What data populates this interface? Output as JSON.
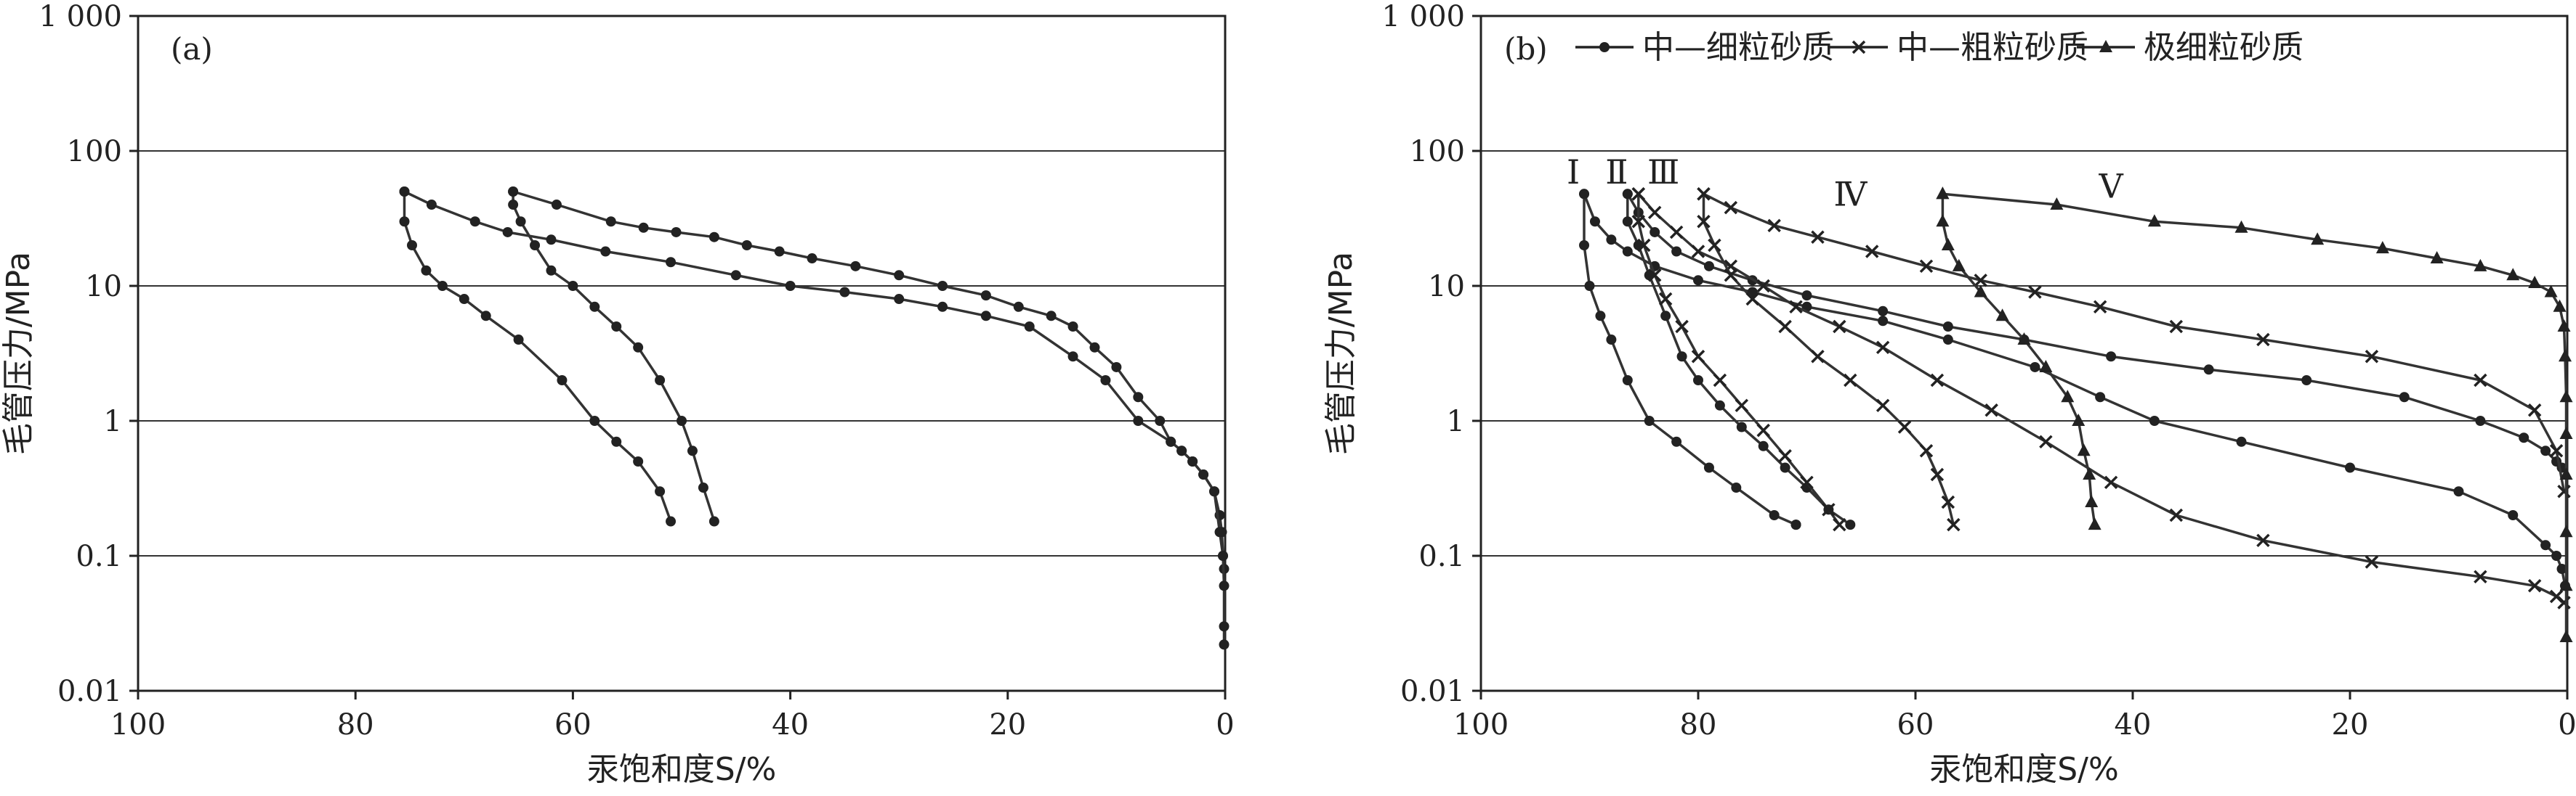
{
  "chart_data": [
    {
      "type": "line",
      "panel_label": "(a)",
      "xlabel": "汞饱和度S/%",
      "ylabel": "毛管压力/MPa",
      "xlim": [
        100,
        0
      ],
      "ylim": [
        0.01,
        1000
      ],
      "yscale": "log",
      "x_ticks": [
        "100",
        "80",
        "60",
        "40",
        "20",
        "0"
      ],
      "y_ticks": [
        "0.01",
        "0.1",
        "1",
        "10",
        "100",
        "1 000"
      ],
      "grid": "horizontal",
      "series": [
        {
          "marker": "circle",
          "x": [
            75.5,
            73,
            69,
            66,
            62,
            57,
            51,
            45,
            40,
            35,
            30,
            26,
            22,
            18,
            14,
            11,
            8,
            5,
            4,
            3,
            2,
            1,
            0.5,
            0.3,
            0.2,
            0.1
          ],
          "y": [
            50,
            40,
            30,
            25,
            22,
            18,
            15,
            12,
            10,
            9,
            8,
            7,
            6,
            5,
            3,
            2,
            1,
            0.7,
            0.6,
            0.5,
            0.4,
            0.3,
            0.2,
            0.15,
            0.1,
            0.08
          ]
        },
        {
          "marker": "circle",
          "x": [
            75.5,
            75.5,
            74.8,
            73.5,
            72,
            70,
            68,
            65,
            61,
            58,
            56,
            54,
            52,
            51
          ],
          "y": [
            50,
            30,
            20,
            13,
            10,
            8,
            6,
            4,
            2,
            1,
            0.7,
            0.5,
            0.3,
            0.18
          ]
        },
        {
          "marker": "circle",
          "x": [
            65.5,
            61.5,
            56.5,
            53.5,
            50.5,
            47,
            44,
            41,
            38,
            34,
            30,
            26,
            22,
            19,
            16,
            14,
            12,
            10,
            8,
            6,
            5,
            4,
            3,
            2,
            1,
            0.5,
            0.2,
            0.1,
            0.1,
            0.1
          ],
          "y": [
            50,
            40,
            30,
            27,
            25,
            23,
            20,
            18,
            16,
            14,
            12,
            10,
            8.5,
            7,
            6,
            5,
            3.5,
            2.5,
            1.5,
            1,
            0.7,
            0.6,
            0.5,
            0.4,
            0.3,
            0.15,
            0.1,
            0.06,
            0.03,
            0.022
          ]
        },
        {
          "marker": "circle",
          "x": [
            65.5,
            65.5,
            64.8,
            63.5,
            62,
            60,
            58,
            56,
            54,
            52,
            50,
            49,
            48,
            47
          ],
          "y": [
            50,
            40,
            30,
            20,
            13,
            10,
            7,
            5,
            3.5,
            2,
            1,
            0.6,
            0.32,
            0.18
          ]
        }
      ]
    },
    {
      "type": "line",
      "panel_label": "(b)",
      "xlabel": "汞饱和度S/%",
      "ylabel": "毛管压力/MPa",
      "xlim": [
        100,
        0
      ],
      "ylim": [
        0.01,
        1000
      ],
      "yscale": "log",
      "x_ticks": [
        "100",
        "80",
        "60",
        "40",
        "20",
        "0"
      ],
      "y_ticks": [
        "0.01",
        "0.1",
        "1",
        "10",
        "100",
        "1 000"
      ],
      "grid": "horizontal",
      "legend": [
        {
          "label": "中—细粒砂质",
          "marker": "circle"
        },
        {
          "label": "中—粗粒砂质",
          "marker": "x"
        },
        {
          "label": "极细粒砂质",
          "marker": "triangle"
        }
      ],
      "annotations": [
        "Ⅰ",
        "Ⅱ",
        "Ⅲ",
        "Ⅳ",
        "Ⅴ"
      ],
      "series": [
        {
          "legend_index": 0,
          "marker": "circle",
          "x": [
            90.5,
            90.5,
            90,
            89,
            88,
            86.5,
            84.5,
            82,
            79,
            76.5,
            73,
            71,
            71
          ],
          "y": [
            48,
            20,
            10,
            6,
            4,
            2,
            1,
            0.7,
            0.45,
            0.32,
            0.2,
            0.17,
            0.17
          ]
        },
        {
          "legend_index": 0,
          "marker": "circle",
          "x": [
            90.5,
            89.5,
            88,
            86.5,
            84,
            80,
            75,
            70,
            63,
            57,
            49,
            43,
            38,
            30,
            20,
            10,
            5,
            2,
            1,
            0.5,
            0.2
          ],
          "y": [
            48,
            30,
            22,
            18,
            14,
            11,
            9,
            7,
            5.5,
            4,
            2.5,
            1.5,
            1,
            0.7,
            0.45,
            0.3,
            0.2,
            0.12,
            0.1,
            0.08,
            0.06
          ]
        },
        {
          "legend_index": 0,
          "marker": "circle",
          "x": [
            86.5,
            86.5,
            85.5,
            84.5,
            83,
            81.5,
            80,
            78,
            76,
            74,
            72,
            70,
            68,
            66
          ],
          "y": [
            48,
            30,
            20,
            12,
            6,
            3,
            2,
            1.3,
            0.9,
            0.65,
            0.45,
            0.32,
            0.22,
            0.17
          ]
        },
        {
          "legend_index": 0,
          "marker": "circle",
          "x": [
            86.5,
            85.5,
            84,
            82,
            79,
            75,
            70,
            63,
            57,
            50,
            42,
            33,
            24,
            15,
            8,
            4,
            2,
            1,
            0.5
          ],
          "y": [
            48,
            35,
            25,
            18,
            14,
            11,
            8.5,
            6.5,
            5,
            4,
            3,
            2.4,
            2,
            1.5,
            1,
            0.75,
            0.6,
            0.5,
            0.45
          ]
        },
        {
          "legend_index": 1,
          "marker": "x",
          "x": [
            85.5,
            85.5,
            85,
            84,
            83,
            81.5,
            80,
            78,
            76,
            74,
            72,
            70,
            68,
            67
          ],
          "y": [
            48,
            30,
            20,
            12,
            8,
            5,
            3,
            2,
            1.3,
            0.85,
            0.55,
            0.35,
            0.22,
            0.17
          ]
        },
        {
          "legend_index": 1,
          "marker": "x",
          "x": [
            85.5,
            84,
            82,
            80,
            77,
            74,
            71,
            67,
            63,
            58,
            53,
            48,
            42,
            36,
            28,
            18,
            8,
            3,
            1,
            0.3
          ],
          "y": [
            48,
            35,
            25,
            18,
            14,
            10,
            7,
            5,
            3.5,
            2,
            1.2,
            0.7,
            0.35,
            0.2,
            0.13,
            0.09,
            0.07,
            0.06,
            0.05,
            0.045
          ]
        },
        {
          "legend_index": 1,
          "marker": "x",
          "x": [
            79.5,
            79.5,
            78.5,
            77,
            75,
            72,
            69,
            66,
            63,
            61,
            59,
            58,
            57,
            56.5
          ],
          "y": [
            48,
            30,
            20,
            12,
            8,
            5,
            3,
            2,
            1.3,
            0.9,
            0.6,
            0.4,
            0.25,
            0.17
          ]
        },
        {
          "legend_index": 1,
          "marker": "x",
          "x": [
            79.5,
            77,
            73,
            69,
            64,
            59,
            54,
            49,
            43,
            36,
            28,
            18,
            8,
            3,
            1,
            0.3
          ],
          "y": [
            48,
            38,
            28,
            23,
            18,
            14,
            11,
            9,
            7,
            5,
            4,
            3,
            2,
            1.2,
            0.6,
            0.3
          ]
        },
        {
          "legend_index": 2,
          "marker": "triangle",
          "x": [
            57.5,
            57.5,
            57,
            56,
            54,
            52,
            50,
            48,
            46,
            45,
            44.5,
            44,
            43.8,
            43.5
          ],
          "y": [
            48,
            30,
            20,
            14,
            9,
            6,
            4,
            2.5,
            1.5,
            1,
            0.6,
            0.4,
            0.25,
            0.17
          ]
        },
        {
          "legend_index": 2,
          "marker": "triangle",
          "x": [
            57.5,
            47,
            38,
            30,
            23,
            17,
            12,
            8,
            5,
            3,
            1.5,
            0.7,
            0.3,
            0.2,
            0.1,
            0.1,
            0.1,
            0.1,
            0.1,
            0.1
          ],
          "y": [
            48,
            40,
            30,
            27,
            22,
            19,
            16,
            14,
            12,
            10.5,
            9,
            7,
            5,
            3,
            1.5,
            0.8,
            0.4,
            0.15,
            0.06,
            0.025
          ]
        }
      ]
    }
  ]
}
